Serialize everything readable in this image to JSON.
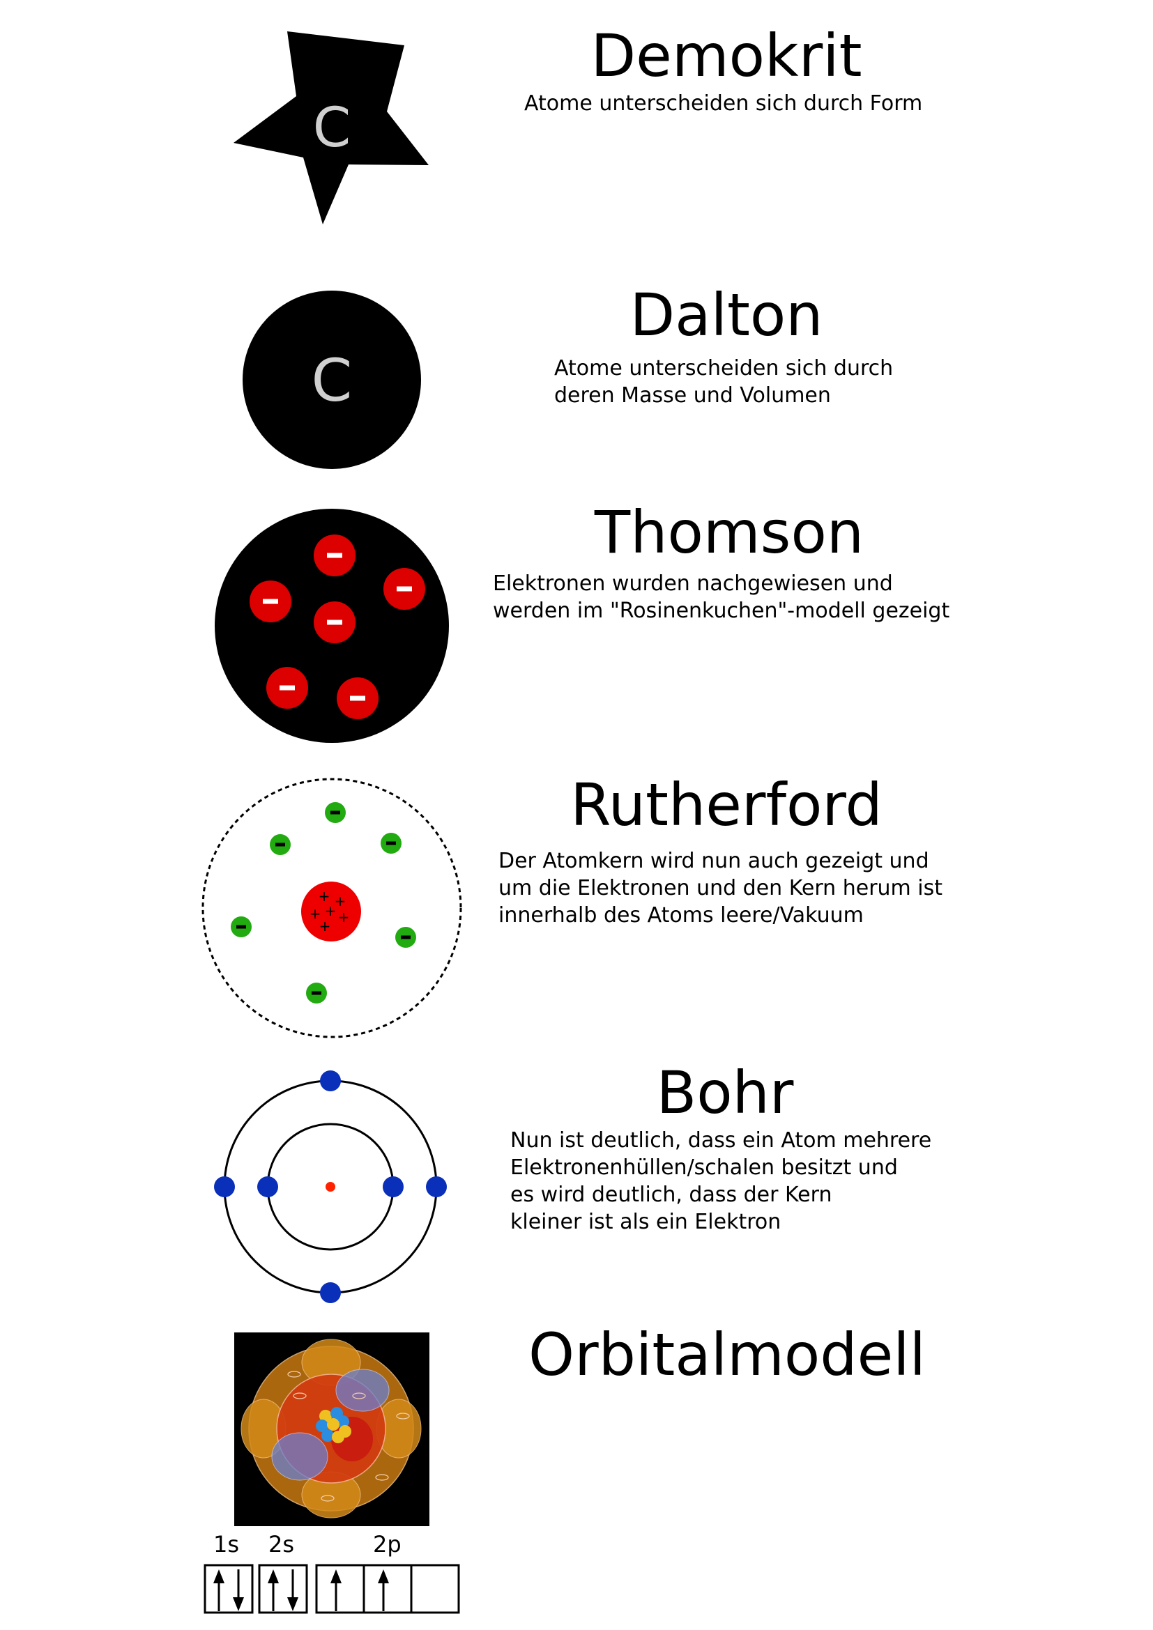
{
  "models": [
    {
      "key": "demokrit",
      "title": "Demokrit",
      "lines": [
        "Atome unterscheiden sich durch Form"
      ],
      "symbol": "C"
    },
    {
      "key": "dalton",
      "title": "Dalton",
      "lines": [
        "Atome unterscheiden sich durch",
        "deren Masse und Volumen"
      ],
      "symbol": "C"
    },
    {
      "key": "thomson",
      "title": "Thomson",
      "lines": [
        "Elektronen wurden nachgewiesen und",
        "werden im \"Rosinenkuchen\"-modell gezeigt"
      ],
      "electron_count": 6
    },
    {
      "key": "rutherford",
      "title": "Rutherford",
      "lines": [
        "Der Atomkern wird nun auch gezeigt und",
        "um die Elektronen und den Kern herum ist",
        "innerhalb des Atoms leere/Vakuum"
      ],
      "electron_count": 6
    },
    {
      "key": "bohr",
      "title": "Bohr",
      "lines": [
        "Nun ist deutlich, dass ein Atom mehrere",
        "Elektronenhüllen/schalen besitzt und",
        "es wird deutlich, dass der Kern",
        "kleiner ist als ein Elektron"
      ],
      "shells": [
        2,
        4
      ]
    },
    {
      "key": "orbital",
      "title": "Orbitalmodell",
      "lines": []
    }
  ],
  "orbital_boxes": {
    "labels": [
      "1s",
      "2s",
      "2p"
    ],
    "cells": [
      {
        "orbital": "1s",
        "electrons": "up-down"
      },
      {
        "orbital": "2s",
        "electrons": "up-down"
      },
      {
        "orbital": "2p",
        "electrons": "up"
      },
      {
        "orbital": "2p",
        "electrons": "up"
      },
      {
        "orbital": "2p",
        "electrons": "empty"
      }
    ]
  },
  "colors": {
    "black": "#000000",
    "symbol": "#d0d0d0",
    "thomson_electron": "#dd0000",
    "rutherford_electron": "#22aa11",
    "rutherford_nucleus": "#ee0000",
    "bohr_electron": "#0a2fb8",
    "bohr_nucleus": "#ff2200"
  }
}
